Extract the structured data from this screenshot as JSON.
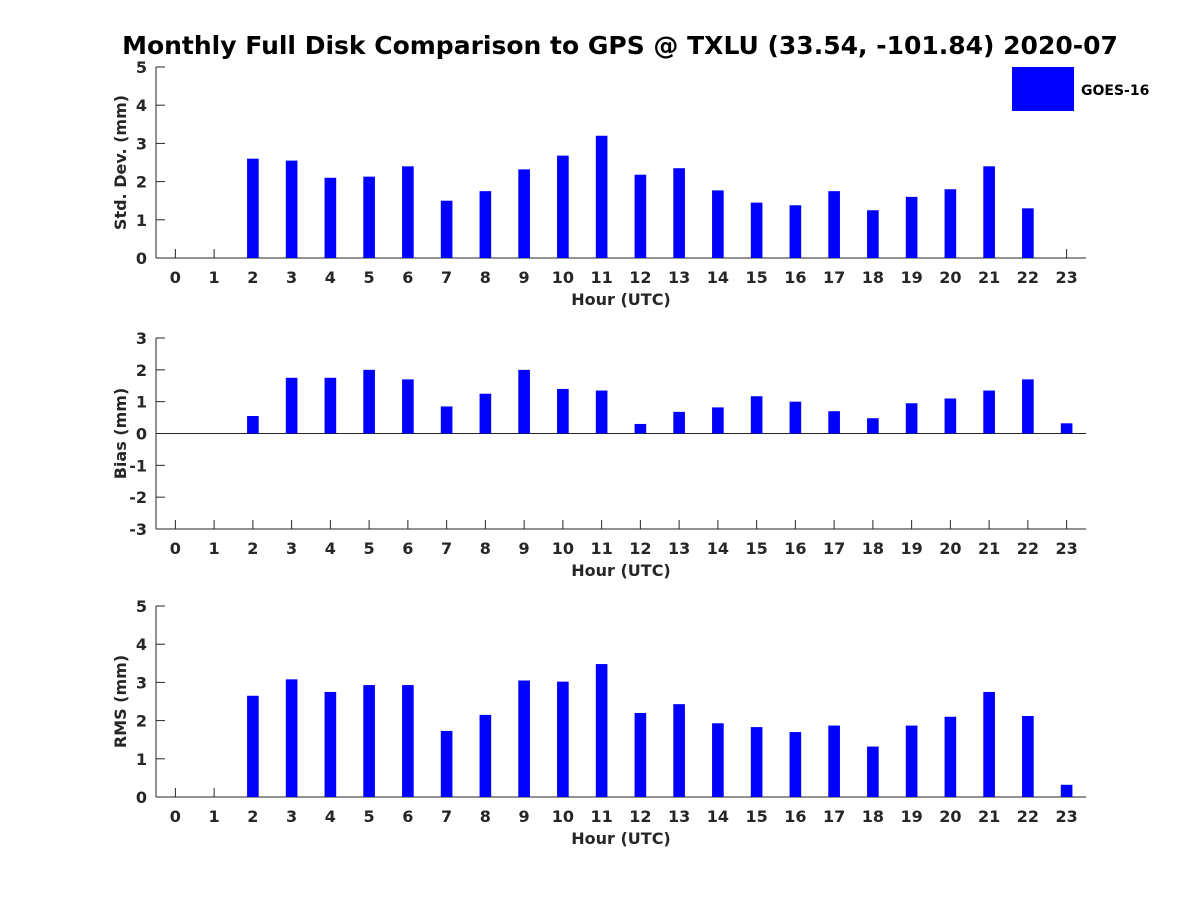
{
  "chart_data": {
    "type": "bar",
    "title": "Monthly Full Disk Comparison to GPS @ TXLU (33.54, -101.84) 2020-07",
    "colors": {
      "bars": "#0000ff",
      "axes": "#262626",
      "background": "#ffffff"
    },
    "legend": {
      "label": "GOES-16",
      "placement": "top-right"
    },
    "grid": false,
    "panels": [
      {
        "xlabel": "Hour (UTC)",
        "ylabel": "Std. Dev. (mm)",
        "ylim": [
          0,
          5
        ],
        "yticks": [
          "0",
          "1",
          "2",
          "3",
          "4",
          "5"
        ],
        "categories": [
          "0",
          "1",
          "2",
          "3",
          "4",
          "5",
          "6",
          "7",
          "8",
          "9",
          "10",
          "11",
          "12",
          "13",
          "14",
          "15",
          "16",
          "17",
          "18",
          "19",
          "20",
          "21",
          "22",
          "23"
        ],
        "values": [
          null,
          null,
          2.6,
          2.55,
          2.1,
          2.13,
          2.4,
          1.5,
          1.75,
          2.32,
          2.68,
          3.2,
          2.18,
          2.35,
          1.77,
          1.45,
          1.38,
          1.75,
          1.25,
          1.6,
          1.8,
          2.4,
          1.3,
          null
        ]
      },
      {
        "xlabel": "Hour (UTC)",
        "ylabel": "Bias (mm)",
        "ylim": [
          -3,
          3
        ],
        "yticks": [
          "-3",
          "-2",
          "-1",
          "0",
          "1",
          "2",
          "3"
        ],
        "categories": [
          "0",
          "1",
          "2",
          "3",
          "4",
          "5",
          "6",
          "7",
          "8",
          "9",
          "10",
          "11",
          "12",
          "13",
          "14",
          "15",
          "16",
          "17",
          "18",
          "19",
          "20",
          "21",
          "22",
          "23"
        ],
        "values": [
          null,
          null,
          0.55,
          1.75,
          1.75,
          2.0,
          1.7,
          0.85,
          1.25,
          2.0,
          1.4,
          1.35,
          0.3,
          0.68,
          0.82,
          1.17,
          1.0,
          0.7,
          0.48,
          0.95,
          1.1,
          1.35,
          1.7,
          0.32
        ]
      },
      {
        "xlabel": "Hour (UTC)",
        "ylabel": "RMS (mm)",
        "ylim": [
          0,
          5
        ],
        "yticks": [
          "0",
          "1",
          "2",
          "3",
          "4",
          "5"
        ],
        "categories": [
          "0",
          "1",
          "2",
          "3",
          "4",
          "5",
          "6",
          "7",
          "8",
          "9",
          "10",
          "11",
          "12",
          "13",
          "14",
          "15",
          "16",
          "17",
          "18",
          "19",
          "20",
          "21",
          "22",
          "23"
        ],
        "values": [
          null,
          null,
          2.65,
          3.08,
          2.75,
          2.93,
          2.93,
          1.73,
          2.15,
          3.05,
          3.02,
          3.48,
          2.2,
          2.43,
          1.93,
          1.83,
          1.7,
          1.87,
          1.32,
          1.87,
          2.1,
          2.75,
          2.12,
          0.32
        ]
      }
    ]
  }
}
